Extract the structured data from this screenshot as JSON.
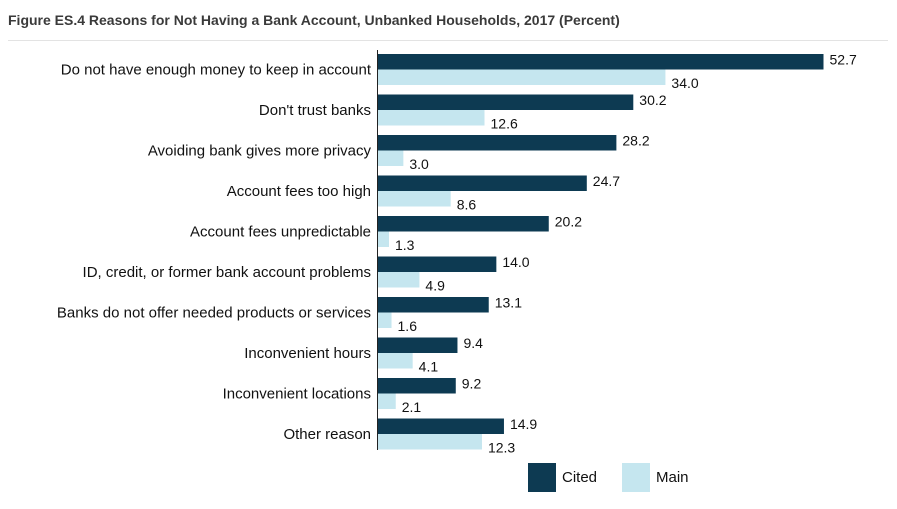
{
  "title": "Figure ES.4 Reasons for Not Having a Bank Account, Unbanked Households, 2017 (Percent)",
  "colors": {
    "cited": "#0d3a52",
    "main": "#c5e6ef",
    "axis": "#222222"
  },
  "chart_data": {
    "type": "bar",
    "orientation": "horizontal",
    "title": "Figure ES.4 Reasons for Not Having a Bank Account, Unbanked Households, 2017 (Percent)",
    "categories": [
      "Do not have enough money to keep in account",
      "Don't trust banks",
      "Avoiding bank gives more privacy",
      "Account fees too high",
      "Account fees unpredictable",
      "ID, credit, or former bank account problems",
      "Banks do not offer needed products or services",
      "Inconvenient hours",
      "Inconvenient locations",
      "Other reason"
    ],
    "series": [
      {
        "name": "Cited",
        "values": [
          52.7,
          30.2,
          28.2,
          24.7,
          20.2,
          14.0,
          13.1,
          9.4,
          9.2,
          14.9
        ]
      },
      {
        "name": "Main",
        "values": [
          34.0,
          12.6,
          3.0,
          8.6,
          1.3,
          4.9,
          1.6,
          4.1,
          2.1,
          12.3
        ]
      }
    ],
    "xlim": [
      0,
      55
    ],
    "grid": false,
    "legend": "bottom"
  }
}
